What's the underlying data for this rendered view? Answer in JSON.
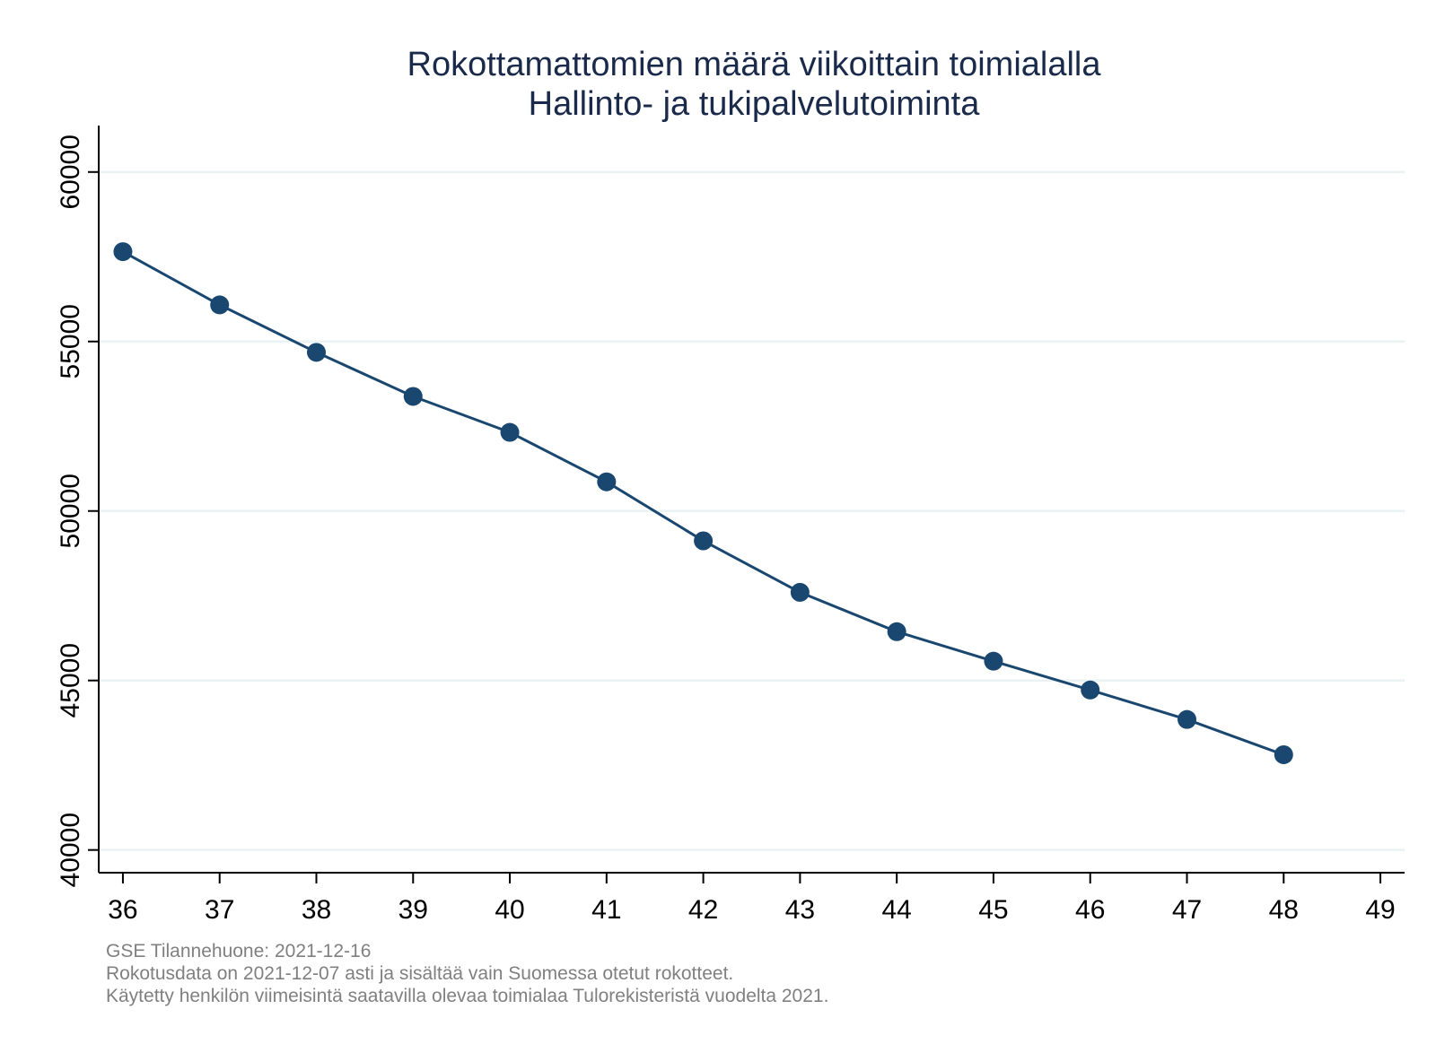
{
  "chart_data": {
    "type": "line",
    "title": "Rokottamattomien määrä viikoittain toimialalla",
    "subtitle": "Hallinto- ja tukipalvelutoiminta",
    "xlabel": "",
    "ylabel": "",
    "x": [
      36,
      37,
      38,
      39,
      40,
      41,
      42,
      43,
      44,
      45,
      46,
      47,
      48
    ],
    "series": [
      {
        "values": [
          57650,
          56080,
          54680,
          53380,
          52320,
          50860,
          49120,
          47600,
          46440,
          45570,
          44720,
          43850,
          42810
        ]
      }
    ],
    "xticks": [
      36,
      37,
      38,
      39,
      40,
      41,
      42,
      43,
      44,
      45,
      46,
      47,
      48,
      49
    ],
    "yticks": [
      40000,
      45000,
      50000,
      55000,
      60000
    ],
    "xlim": [
      35.75,
      49.25
    ],
    "ylim": [
      39330,
      61370
    ],
    "grid": true,
    "legend": "none",
    "colors": {
      "series": "#1a476f",
      "grid": "#eaf2f3",
      "axis": "#000000",
      "title": "#1a2a4a",
      "note": "#808080"
    }
  },
  "notes": [
    "GSE Tilannehuone: 2021-12-16",
    "Rokotusdata on 2021-12-07 asti ja sisältää vain Suomessa otetut rokotteet.",
    "Käytetty henkilön viimeisintä saatavilla olevaa toimialaa Tulorekisteristä vuodelta 2021."
  ]
}
